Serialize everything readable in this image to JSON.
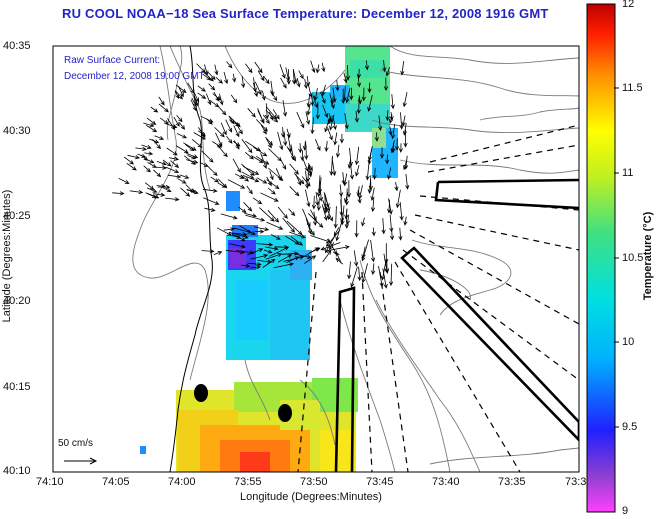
{
  "title": "RU COOL  NOAA−18  Sea Surface Temperature:  December 12, 2008 1916 GMT",
  "legend": {
    "line1": "Raw Surface Current:",
    "line2": "December 12, 2008 19:00 GMT",
    "scale_label": "50 cm/s"
  },
  "axes": {
    "xlabel": "Longitude (Degrees:Minutes)",
    "ylabel": "Latitude (Degrees:Minutes)",
    "xticks": [
      "74:10",
      "74:05",
      "74:00",
      "73:55",
      "73:50",
      "73:45",
      "73:40",
      "73:35",
      "73:3"
    ],
    "yticks": [
      "40:35",
      "40:30",
      "40:25",
      "40:20",
      "40:15",
      "40:10"
    ]
  },
  "colorbar": {
    "label": "Temperature (°C)",
    "ticks": [
      "12",
      "11.5",
      "11",
      "10.5",
      "10",
      "9.5",
      "9"
    ],
    "min": 9,
    "max": 12
  },
  "colors": {
    "title": "#2323c8",
    "arrows": "#000000",
    "bathymetry": "#7a7a7a"
  }
}
